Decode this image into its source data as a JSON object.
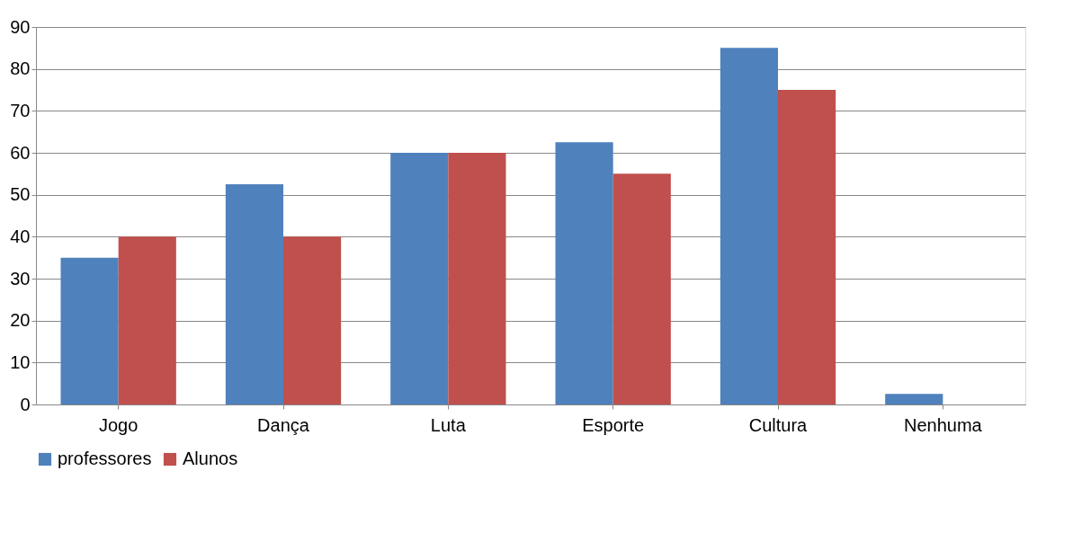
{
  "chart_data": {
    "type": "bar",
    "categories": [
      "Jogo",
      "Dança",
      "Luta",
      "Esporte",
      "Cultura",
      "Nenhuma"
    ],
    "series": [
      {
        "name": "professores",
        "color": "#4f81bd",
        "values": [
          35,
          52.5,
          60,
          62.5,
          85,
          2.5
        ]
      },
      {
        "name": "Alunos",
        "color": "#c0504d",
        "values": [
          40,
          40,
          60,
          55,
          75,
          0
        ]
      }
    ],
    "ylim": [
      0,
      90
    ],
    "yticks": [
      0,
      10,
      20,
      30,
      40,
      50,
      60,
      70,
      80,
      90
    ],
    "grid": "y",
    "legend": "bottom"
  }
}
